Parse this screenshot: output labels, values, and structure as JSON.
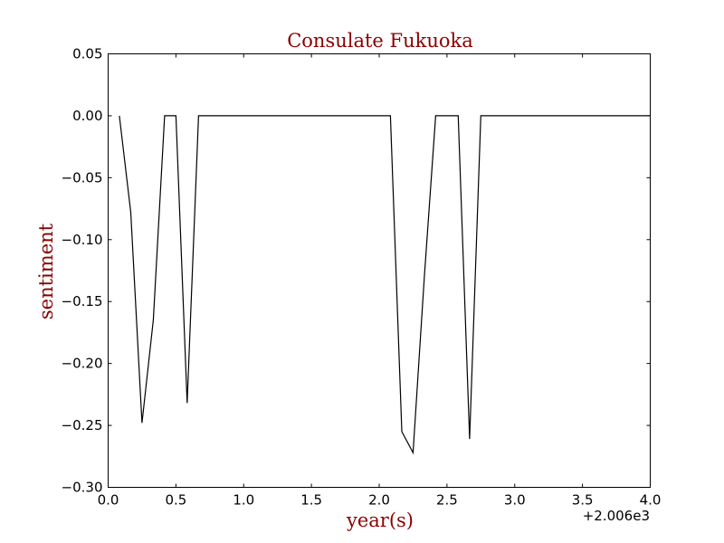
{
  "chart_data": {
    "type": "line",
    "title": "Consulate Fukuoka",
    "xlabel": "year(s)",
    "ylabel": "sentiment",
    "x_offset_label": "+2.006e3",
    "xlim": [
      0.0,
      4.0
    ],
    "ylim": [
      -0.3,
      0.05
    ],
    "x_ticks": [
      "0.0",
      "0.5",
      "1.0",
      "1.5",
      "2.0",
      "2.5",
      "3.0",
      "3.5",
      "4.0"
    ],
    "y_ticks": [
      "0.05",
      "0.00",
      "−0.05",
      "−0.10",
      "−0.15",
      "−0.20",
      "−0.25",
      "−0.30"
    ],
    "grid": false,
    "series": [
      {
        "x": [
          0.083,
          0.167,
          0.25,
          0.333,
          0.417,
          0.5,
          0.583,
          0.667,
          0.75,
          0.833,
          0.917,
          1.0,
          1.083,
          1.167,
          1.25,
          1.333,
          1.417,
          1.5,
          1.583,
          1.667,
          1.75,
          1.833,
          1.917,
          2.0,
          2.083,
          2.167,
          2.25,
          2.333,
          2.417,
          2.5,
          2.583,
          2.667,
          2.75,
          2.833,
          2.917,
          3.0,
          3.083,
          3.167,
          3.25,
          3.333,
          3.417,
          3.5,
          3.583,
          3.667,
          3.75,
          3.833,
          3.917,
          4.0
        ],
        "values": [
          0.0,
          -0.078,
          -0.248,
          -0.165,
          0.0,
          0.0,
          -0.232,
          0.0,
          0.0,
          0.0,
          0.0,
          0.0,
          0.0,
          0.0,
          0.0,
          0.0,
          0.0,
          0.0,
          0.0,
          0.0,
          0.0,
          0.0,
          0.0,
          0.0,
          0.0,
          -0.255,
          -0.272,
          -0.13,
          0.0,
          0.0,
          0.0,
          -0.261,
          0.0,
          0.0,
          0.0,
          0.0,
          0.0,
          0.0,
          0.0,
          0.0,
          0.0,
          0.0,
          0.0,
          0.0,
          0.0,
          0.0,
          0.0,
          0.0
        ]
      }
    ],
    "colors": {
      "line": "#000000",
      "title": "#8b0000",
      "axis_label": "#8b0000"
    }
  }
}
